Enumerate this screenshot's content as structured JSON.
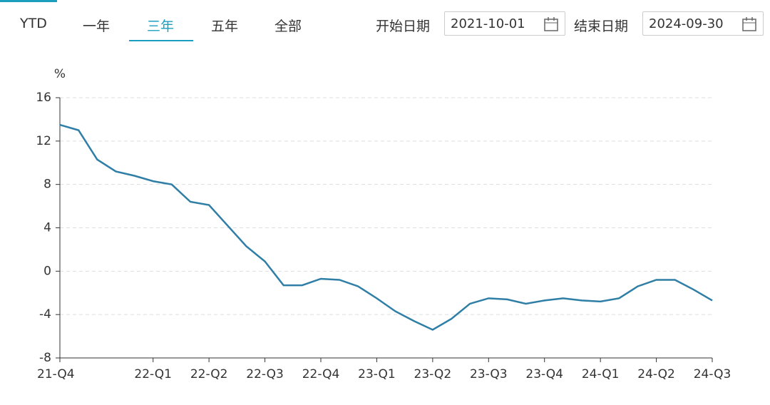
{
  "tabs": [
    "YTD",
    "一年",
    "三年",
    "五年",
    "全部"
  ],
  "active_tab": 2,
  "start_label": "开始日期",
  "start_date": "2021-10-01",
  "end_label": "结束日期",
  "end_date": "2024-09-30",
  "chart_data": {
    "type": "line",
    "y_unit": "%",
    "color": "#2e7ea6",
    "categories": [
      "21-Q4",
      null,
      null,
      null,
      null,
      "22-Q1",
      null,
      null,
      "22-Q2",
      null,
      null,
      "22-Q3",
      null,
      null,
      "22-Q4",
      null,
      null,
      "23-Q1",
      null,
      null,
      "23-Q2",
      null,
      null,
      "23-Q3",
      null,
      null,
      "23-Q4",
      null,
      null,
      "24-Q1",
      null,
      null,
      "24-Q2",
      null,
      null,
      "24-Q3"
    ],
    "values": [
      13.5,
      13.0,
      10.3,
      9.2,
      8.8,
      8.3,
      8.0,
      6.4,
      6.1,
      4.2,
      2.3,
      0.9,
      -1.3,
      -1.3,
      -0.7,
      -0.8,
      -1.4,
      -2.5,
      -3.7,
      -4.6,
      -5.4,
      -4.4,
      -3.0,
      -2.5,
      -2.6,
      -3.0,
      -2.7,
      -2.5,
      -2.7,
      -2.8,
      -2.5,
      -1.4,
      -0.8,
      -0.8,
      -1.7,
      -2.7
    ],
    "ylim": [
      -8,
      16
    ],
    "yticks": [
      -8,
      -4,
      0,
      4,
      8,
      12,
      16
    ],
    "grid": true
  }
}
